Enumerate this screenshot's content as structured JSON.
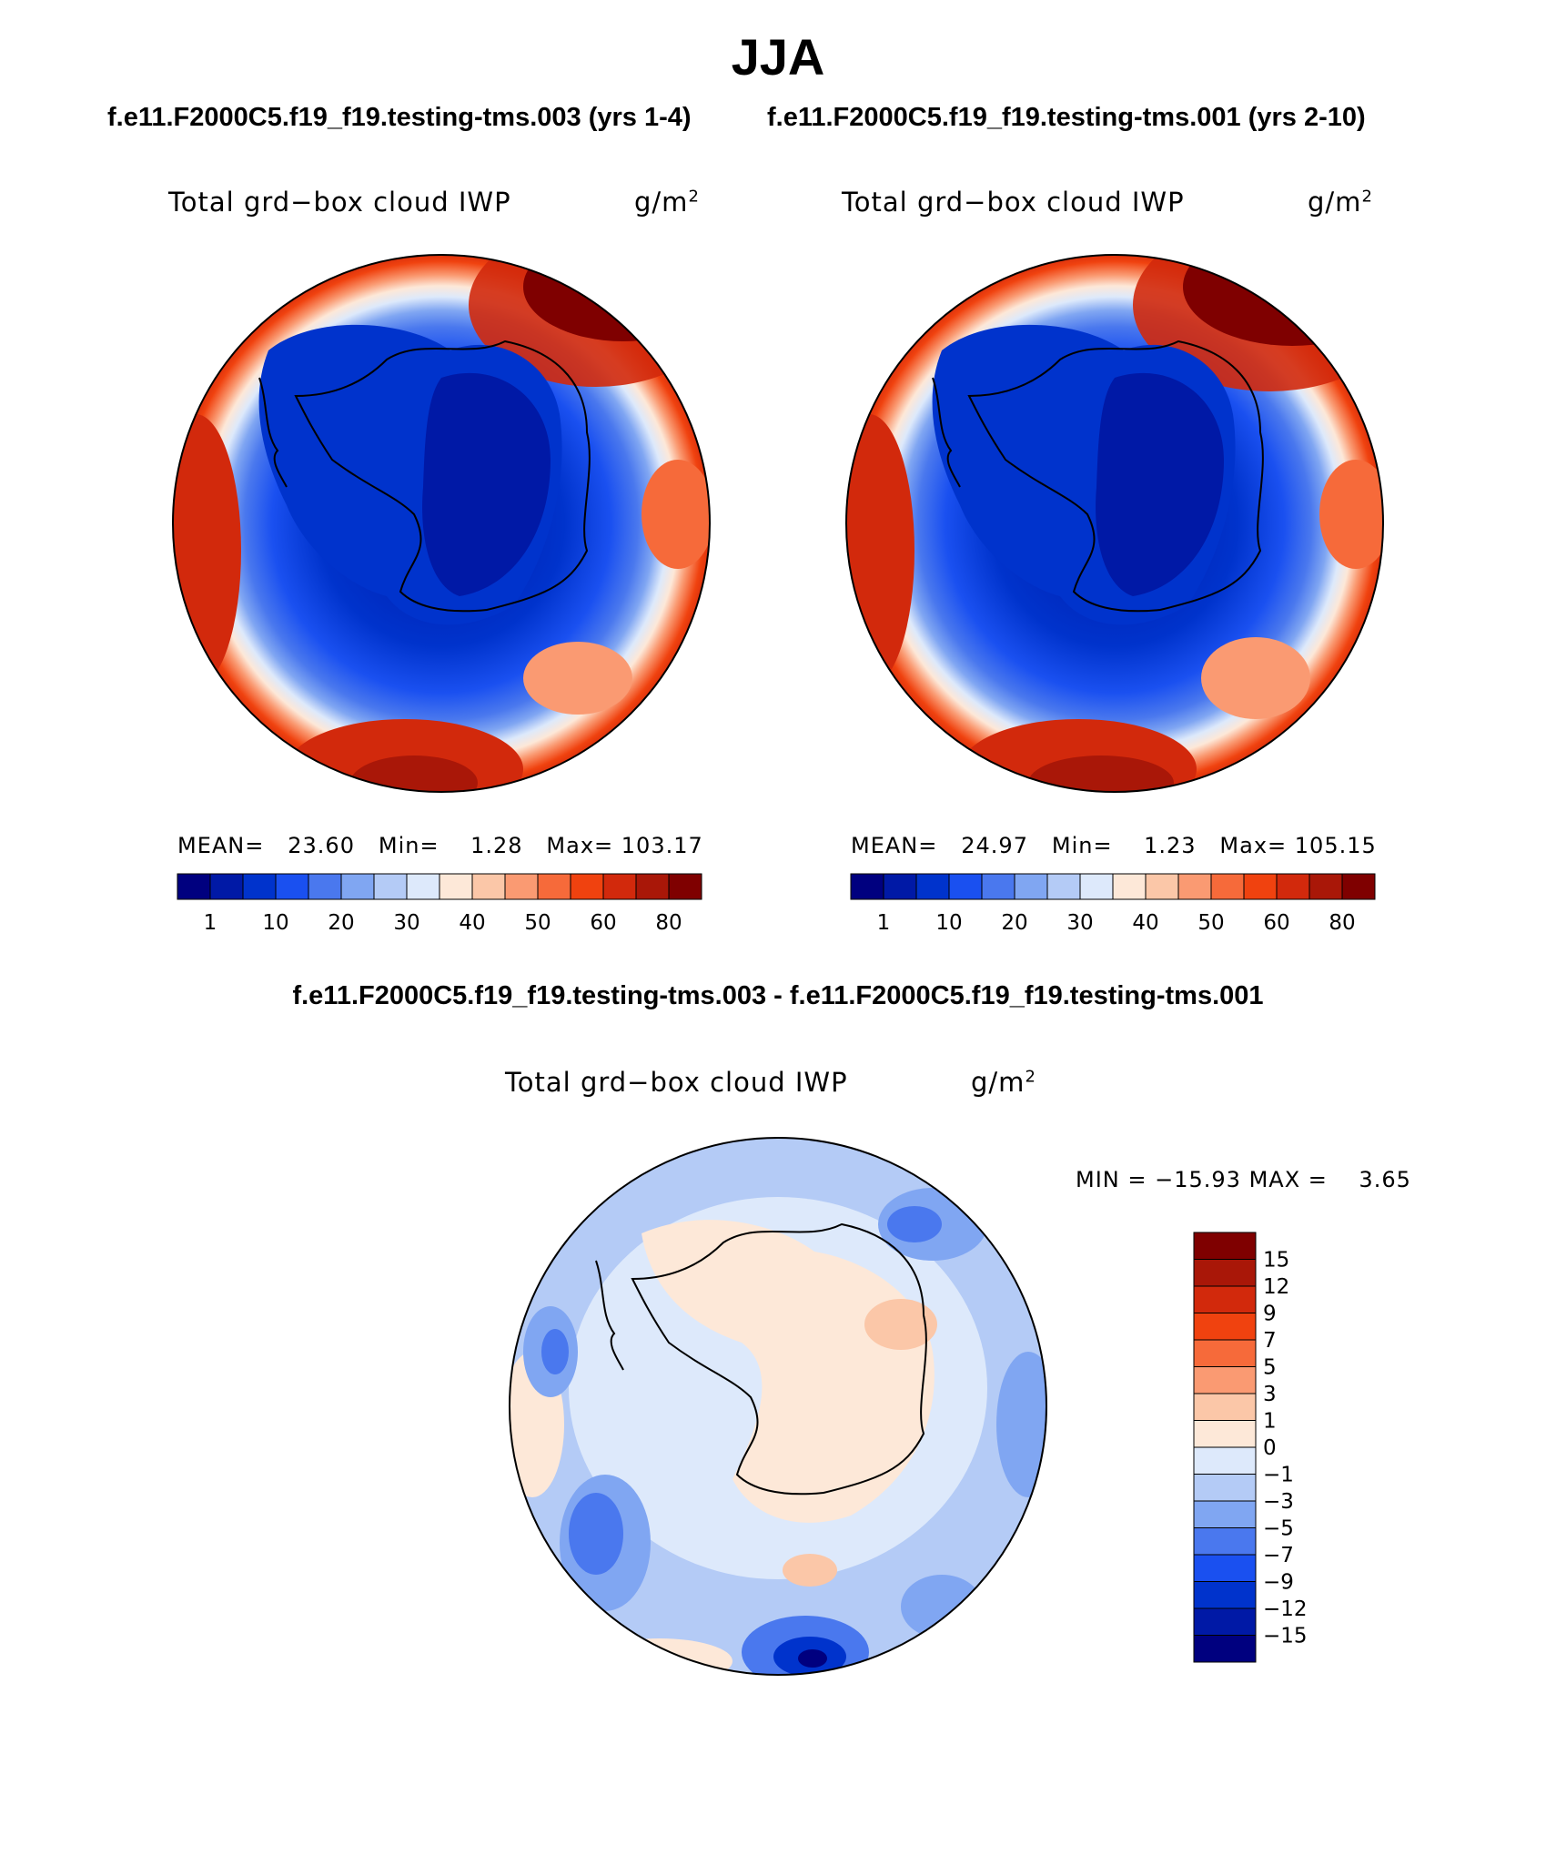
{
  "header": {
    "season": "JJA",
    "case1_title": "f.e11.F2000C5.f19_f19.testing-tms.003 (yrs 1-4)",
    "case2_title": "f.e11.F2000C5.f19_f19.testing-tms.001 (yrs 2-10)",
    "diff_title": "f.e11.F2000C5.f19_f19.testing-tms.003 - f.e11.F2000C5.f19_f19.testing-tms.001"
  },
  "panels": [
    {
      "variable": "Total grd−box cloud IWP",
      "units_base": "g/m",
      "units_exp": "2",
      "mean_label": "MEAN=",
      "mean": "23.60",
      "min_label": "Min=",
      "min": "1.28",
      "max_label": "Max=",
      "max": "103.17"
    },
    {
      "variable": "Total grd−box cloud IWP",
      "units_base": "g/m",
      "units_exp": "2",
      "mean_label": "MEAN=",
      "mean": "24.97",
      "min_label": "Min=",
      "min": "1.23",
      "max_label": "Max=",
      "max": "105.15"
    }
  ],
  "diff_panel": {
    "variable": "Total grd−box cloud IWP",
    "units_base": "g/m",
    "units_exp": "2",
    "min_label": "MIN =",
    "min": "−15.93",
    "max_label": "MAX =",
    "max": "3.65"
  },
  "abs_colorbar": {
    "tick_labels": [
      "1",
      "10",
      "20",
      "30",
      "40",
      "50",
      "60",
      "80"
    ],
    "colors": [
      "#00007f",
      "#0019a6",
      "#0033cc",
      "#1a50f0",
      "#4a78ee",
      "#80a6f2",
      "#b4cbf6",
      "#dde9fb",
      "#fde8d8",
      "#fbc7a8",
      "#fa9a72",
      "#f66a3a",
      "#f0420f",
      "#d2290c",
      "#a91708",
      "#7f0000"
    ]
  },
  "diff_colorbar": {
    "tick_labels": [
      "15",
      "12",
      "9",
      "7",
      "5",
      "3",
      "1",
      "0",
      "−1",
      "−3",
      "−5",
      "−7",
      "−9",
      "−12",
      "−15"
    ],
    "colors_top_to_bottom": [
      "#7f0000",
      "#a91708",
      "#d2290c",
      "#f0420f",
      "#f66a3a",
      "#fa9a72",
      "#fbc7a8",
      "#fde8d8",
      "#dde9fb",
      "#b4cbf6",
      "#80a6f2",
      "#4a78ee",
      "#1a50f0",
      "#0033cc",
      "#0019a6",
      "#00007f"
    ]
  }
}
